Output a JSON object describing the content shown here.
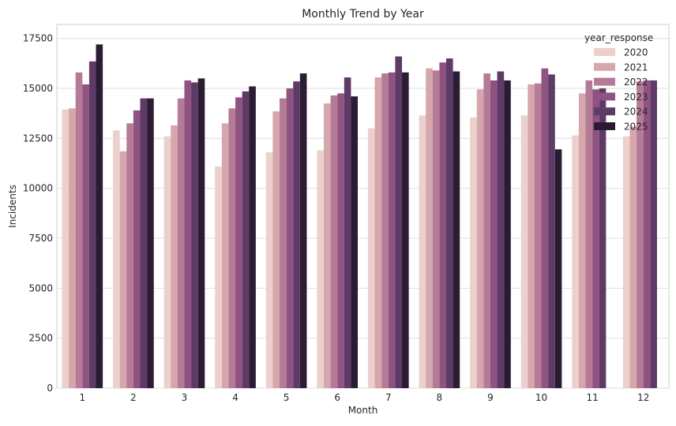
{
  "chart_data": {
    "type": "bar",
    "title": "Monthly Trend by Year",
    "xlabel": "Month",
    "ylabel": "Incidents",
    "ylim": [
      0,
      18200
    ],
    "yticks": [
      0,
      2500,
      5000,
      7500,
      10000,
      12500,
      15000,
      17500
    ],
    "grid": true,
    "legend": {
      "title": "year_response",
      "placement": "top-right"
    },
    "categories": [
      "1",
      "2",
      "3",
      "4",
      "5",
      "6",
      "7",
      "8",
      "9",
      "10",
      "11",
      "12"
    ],
    "series": [
      {
        "name": "2020",
        "color": "#ebd0cc",
        "values": [
          13950,
          12900,
          12600,
          11100,
          11800,
          11900,
          13000,
          13650,
          13550,
          13650,
          12650,
          12600
        ]
      },
      {
        "name": "2021",
        "color": "#d5a6ab",
        "values": [
          14000,
          11850,
          13150,
          13250,
          13850,
          14250,
          15550,
          16000,
          14950,
          15200,
          14750,
          13100
        ]
      },
      {
        "name": "2022",
        "color": "#b57a96",
        "values": [
          15800,
          13250,
          14500,
          14000,
          14500,
          14650,
          15750,
          15900,
          15750,
          15250,
          15400,
          15350
        ]
      },
      {
        "name": "2023",
        "color": "#8e5380",
        "values": [
          15200,
          13900,
          15400,
          14550,
          15000,
          14750,
          15800,
          16300,
          15400,
          16000,
          14950,
          15400
        ]
      },
      {
        "name": "2024",
        "color": "#5e3a66",
        "values": [
          16350,
          14500,
          15300,
          14850,
          15350,
          15550,
          16600,
          16500,
          15850,
          15700,
          15000,
          15400
        ]
      },
      {
        "name": "2025",
        "color": "#2b1c33",
        "values": [
          17200,
          14500,
          15500,
          15100,
          15750,
          14600,
          15800,
          15850,
          15400,
          11950,
          null,
          null
        ]
      }
    ]
  }
}
